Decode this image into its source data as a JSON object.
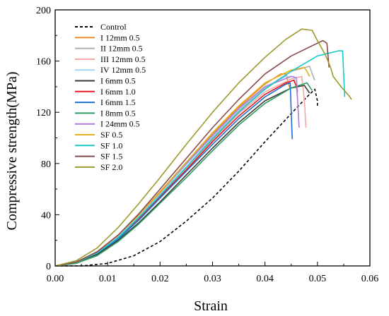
{
  "chart_data": {
    "type": "line",
    "xlabel": "Strain",
    "ylabel": "Compressive strength(MPa)",
    "xlim": [
      0,
      0.06
    ],
    "ylim": [
      0,
      200
    ],
    "xticks": [
      "0.00",
      "0.01",
      "0.02",
      "0.03",
      "0.04",
      "0.05",
      "0.06"
    ],
    "yticks": [
      "0",
      "40",
      "80",
      "120",
      "160",
      "200"
    ],
    "legend_position": "top-left",
    "grid": false,
    "series": [
      {
        "name": "Control",
        "color": "#000000",
        "dash": true,
        "points": [
          [
            0,
            0
          ],
          [
            0.005,
            0
          ],
          [
            0.01,
            2
          ],
          [
            0.015,
            8
          ],
          [
            0.02,
            19
          ],
          [
            0.025,
            35
          ],
          [
            0.03,
            53
          ],
          [
            0.035,
            74
          ],
          [
            0.04,
            97
          ],
          [
            0.045,
            119
          ],
          [
            0.048,
            132
          ],
          [
            0.0495,
            138
          ],
          [
            0.05,
            129
          ],
          [
            0.05,
            124
          ]
        ]
      },
      {
        "name": "I 12mm 0.5",
        "color": "#f28e2b",
        "points": [
          [
            0,
            0
          ],
          [
            0.004,
            3
          ],
          [
            0.008,
            11
          ],
          [
            0.012,
            24
          ],
          [
            0.016,
            40
          ],
          [
            0.02,
            57
          ],
          [
            0.025,
            80
          ],
          [
            0.03,
            103
          ],
          [
            0.035,
            124
          ],
          [
            0.04,
            142
          ],
          [
            0.043,
            150
          ],
          [
            0.044,
            150
          ],
          [
            0.0445,
            142
          ],
          [
            0.0448,
            138
          ]
        ]
      },
      {
        "name": "II 12mm 0.5",
        "color": "#b0b0b0",
        "points": [
          [
            0,
            0
          ],
          [
            0.004,
            3
          ],
          [
            0.008,
            10
          ],
          [
            0.012,
            22
          ],
          [
            0.016,
            38
          ],
          [
            0.02,
            55
          ],
          [
            0.025,
            77
          ],
          [
            0.03,
            100
          ],
          [
            0.035,
            121
          ],
          [
            0.04,
            139
          ],
          [
            0.045,
            152
          ],
          [
            0.0485,
            156
          ],
          [
            0.049,
            150
          ],
          [
            0.0495,
            145
          ]
        ]
      },
      {
        "name": "III 12mm 0.5",
        "color": "#f4a6a6",
        "points": [
          [
            0,
            0
          ],
          [
            0.004,
            3
          ],
          [
            0.008,
            10
          ],
          [
            0.012,
            22
          ],
          [
            0.016,
            37
          ],
          [
            0.02,
            54
          ],
          [
            0.025,
            76
          ],
          [
            0.03,
            98
          ],
          [
            0.035,
            119
          ],
          [
            0.04,
            136
          ],
          [
            0.045,
            146
          ],
          [
            0.047,
            148
          ],
          [
            0.0475,
            130
          ],
          [
            0.0478,
            108
          ]
        ]
      },
      {
        "name": "IV 12mm 0.5",
        "color": "#9fd3f0",
        "points": [
          [
            0,
            0
          ],
          [
            0.004,
            3
          ],
          [
            0.008,
            11
          ],
          [
            0.012,
            23
          ],
          [
            0.016,
            39
          ],
          [
            0.02,
            56
          ],
          [
            0.025,
            79
          ],
          [
            0.03,
            101
          ],
          [
            0.035,
            122
          ],
          [
            0.04,
            140
          ],
          [
            0.044,
            148
          ],
          [
            0.0455,
            148
          ],
          [
            0.046,
            138
          ],
          [
            0.0462,
            130
          ]
        ]
      },
      {
        "name": "I 6mm 0.5",
        "color": "#3a3a3a",
        "points": [
          [
            0,
            0
          ],
          [
            0.004,
            3
          ],
          [
            0.008,
            9
          ],
          [
            0.012,
            20
          ],
          [
            0.016,
            34
          ],
          [
            0.02,
            50
          ],
          [
            0.025,
            71
          ],
          [
            0.03,
            92
          ],
          [
            0.035,
            112
          ],
          [
            0.04,
            129
          ],
          [
            0.045,
            139
          ],
          [
            0.0475,
            141
          ],
          [
            0.048,
            138
          ],
          [
            0.0485,
            135
          ]
        ]
      },
      {
        "name": "I 6mm 1.0",
        "color": "#e41a1c",
        "points": [
          [
            0,
            0
          ],
          [
            0.004,
            3
          ],
          [
            0.008,
            10
          ],
          [
            0.012,
            22
          ],
          [
            0.016,
            37
          ],
          [
            0.02,
            54
          ],
          [
            0.025,
            75
          ],
          [
            0.03,
            97
          ],
          [
            0.035,
            117
          ],
          [
            0.04,
            134
          ],
          [
            0.044,
            143
          ],
          [
            0.0455,
            145
          ],
          [
            0.046,
            140
          ],
          [
            0.0462,
            136
          ]
        ]
      },
      {
        "name": "I 6mm 1.5",
        "color": "#1f6fd1",
        "points": [
          [
            0,
            0
          ],
          [
            0.004,
            3
          ],
          [
            0.008,
            10
          ],
          [
            0.012,
            21
          ],
          [
            0.016,
            36
          ],
          [
            0.02,
            53
          ],
          [
            0.025,
            74
          ],
          [
            0.03,
            95
          ],
          [
            0.035,
            115
          ],
          [
            0.04,
            132
          ],
          [
            0.044,
            142
          ],
          [
            0.0448,
            143
          ],
          [
            0.045,
            120
          ],
          [
            0.0452,
            99
          ]
        ]
      },
      {
        "name": "I 8mm 0.5",
        "color": "#2e9c5e",
        "points": [
          [
            0,
            0
          ],
          [
            0.004,
            2
          ],
          [
            0.008,
            8
          ],
          [
            0.012,
            19
          ],
          [
            0.016,
            33
          ],
          [
            0.02,
            49
          ],
          [
            0.025,
            69
          ],
          [
            0.03,
            90
          ],
          [
            0.035,
            110
          ],
          [
            0.04,
            127
          ],
          [
            0.045,
            139
          ],
          [
            0.048,
            143
          ],
          [
            0.0485,
            140
          ],
          [
            0.049,
            137
          ]
        ]
      },
      {
        "name": "I 24mm 0.5",
        "color": "#b07cd8",
        "points": [
          [
            0,
            0
          ],
          [
            0.004,
            3
          ],
          [
            0.008,
            11
          ],
          [
            0.012,
            24
          ],
          [
            0.016,
            40
          ],
          [
            0.02,
            58
          ],
          [
            0.025,
            80
          ],
          [
            0.03,
            102
          ],
          [
            0.035,
            123
          ],
          [
            0.04,
            140
          ],
          [
            0.045,
            148
          ],
          [
            0.046,
            147
          ],
          [
            0.0462,
            130
          ],
          [
            0.0465,
            108
          ]
        ]
      },
      {
        "name": "SF 0.5",
        "color": "#e0b020",
        "points": [
          [
            0,
            0
          ],
          [
            0.004,
            3
          ],
          [
            0.008,
            11
          ],
          [
            0.012,
            24
          ],
          [
            0.016,
            40
          ],
          [
            0.02,
            58
          ],
          [
            0.025,
            81
          ],
          [
            0.03,
            104
          ],
          [
            0.035,
            125
          ],
          [
            0.04,
            143
          ],
          [
            0.045,
            153
          ],
          [
            0.0475,
            155
          ],
          [
            0.048,
            152
          ],
          [
            0.0485,
            148
          ]
        ]
      },
      {
        "name": "SF 1.0",
        "color": "#17c9c9",
        "points": [
          [
            0,
            0
          ],
          [
            0.004,
            3
          ],
          [
            0.008,
            10
          ],
          [
            0.012,
            22
          ],
          [
            0.016,
            38
          ],
          [
            0.02,
            55
          ],
          [
            0.025,
            77
          ],
          [
            0.03,
            99
          ],
          [
            0.035,
            120
          ],
          [
            0.04,
            138
          ],
          [
            0.045,
            152
          ],
          [
            0.05,
            164
          ],
          [
            0.054,
            168
          ],
          [
            0.0548,
            168
          ],
          [
            0.055,
            150
          ],
          [
            0.0552,
            132
          ]
        ]
      },
      {
        "name": "SF 1.5",
        "color": "#8b4a4a",
        "points": [
          [
            0,
            0
          ],
          [
            0.004,
            3
          ],
          [
            0.008,
            11
          ],
          [
            0.012,
            24
          ],
          [
            0.016,
            41
          ],
          [
            0.02,
            60
          ],
          [
            0.025,
            84
          ],
          [
            0.03,
            108
          ],
          [
            0.035,
            130
          ],
          [
            0.04,
            150
          ],
          [
            0.045,
            164
          ],
          [
            0.049,
            172
          ],
          [
            0.051,
            176
          ],
          [
            0.0518,
            174
          ],
          [
            0.052,
            165
          ],
          [
            0.0522,
            155
          ]
        ]
      },
      {
        "name": "SF 2.0",
        "color": "#9c9a2e",
        "points": [
          [
            0,
            0
          ],
          [
            0.004,
            4
          ],
          [
            0.008,
            14
          ],
          [
            0.012,
            30
          ],
          [
            0.016,
            49
          ],
          [
            0.02,
            69
          ],
          [
            0.025,
            95
          ],
          [
            0.03,
            120
          ],
          [
            0.035,
            143
          ],
          [
            0.04,
            163
          ],
          [
            0.044,
            177
          ],
          [
            0.047,
            185
          ],
          [
            0.049,
            184
          ],
          [
            0.05,
            176
          ],
          [
            0.0515,
            165
          ],
          [
            0.0525,
            155
          ],
          [
            0.053,
            148
          ],
          [
            0.0545,
            140
          ],
          [
            0.056,
            133
          ],
          [
            0.0565,
            130
          ]
        ]
      }
    ]
  }
}
